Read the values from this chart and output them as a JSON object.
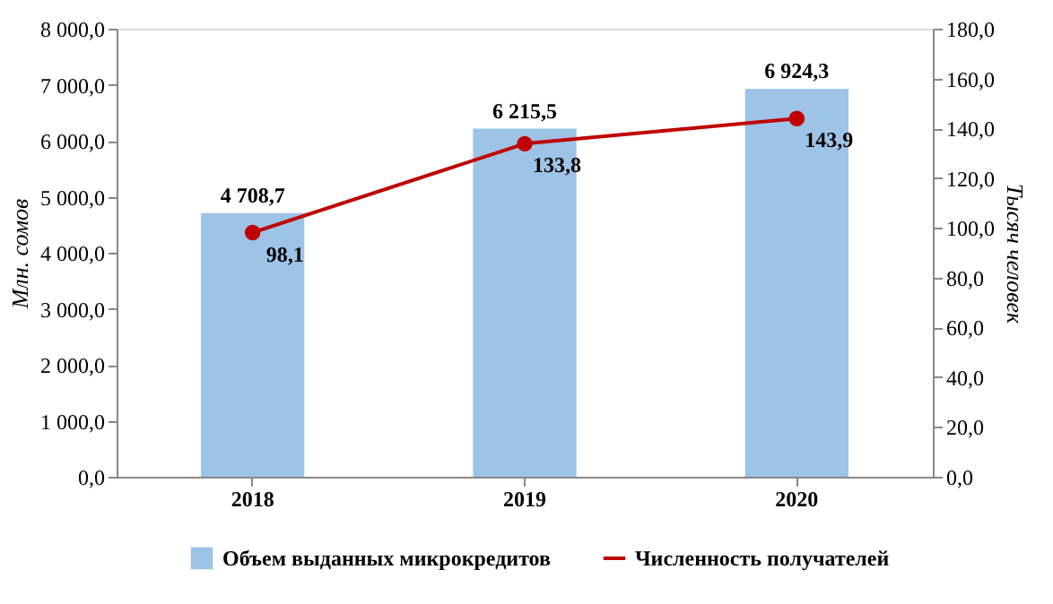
{
  "chart_data": {
    "type": "bar",
    "ylabel": "Млн. сомов",
    "y2label": "Тысяч человек",
    "categories": [
      "2018",
      "2019",
      "2020"
    ],
    "series": [
      {
        "name": "Объем выданных микрокредитов",
        "color": "#9dc3e6",
        "values": [
          4708.7,
          6215.5,
          6924.3
        ],
        "value_labels": [
          "4 708,7",
          "6 215,5",
          "6 924,3"
        ]
      },
      {
        "name": "Численность получателей",
        "color": "#c00000",
        "type": "line",
        "axis": "y2",
        "marker": "circle",
        "values": [
          98.1,
          133.8,
          143.9
        ],
        "value_labels": [
          "98,1",
          "133,8",
          "143,9"
        ]
      }
    ],
    "ylim": [
      0,
      8000
    ],
    "yticks": [
      {
        "value": 0,
        "label": "0,0"
      },
      {
        "value": 1000,
        "label": "1 000,0"
      },
      {
        "value": 2000,
        "label": "2 000,0"
      },
      {
        "value": 3000,
        "label": "3 000,0"
      },
      {
        "value": 4000,
        "label": "4 000,0"
      },
      {
        "value": 5000,
        "label": "5 000,0"
      },
      {
        "value": 6000,
        "label": "6 000,0"
      },
      {
        "value": 7000,
        "label": "7 000,0"
      },
      {
        "value": 8000,
        "label": "8 000,0"
      }
    ],
    "y2lim": [
      0,
      180
    ],
    "y2ticks": [
      {
        "value": 0,
        "label": "0,0"
      },
      {
        "value": 20,
        "label": "20,0"
      },
      {
        "value": 40,
        "label": "40,0"
      },
      {
        "value": 60,
        "label": "60,0"
      },
      {
        "value": 80,
        "label": "80,0"
      },
      {
        "value": 100,
        "label": "100,0"
      },
      {
        "value": 120,
        "label": "120,0"
      },
      {
        "value": 140,
        "label": "140,0"
      },
      {
        "value": 160,
        "label": "160,0"
      },
      {
        "value": 180,
        "label": "180,0"
      }
    ],
    "grid": false,
    "legend": "bottom"
  }
}
